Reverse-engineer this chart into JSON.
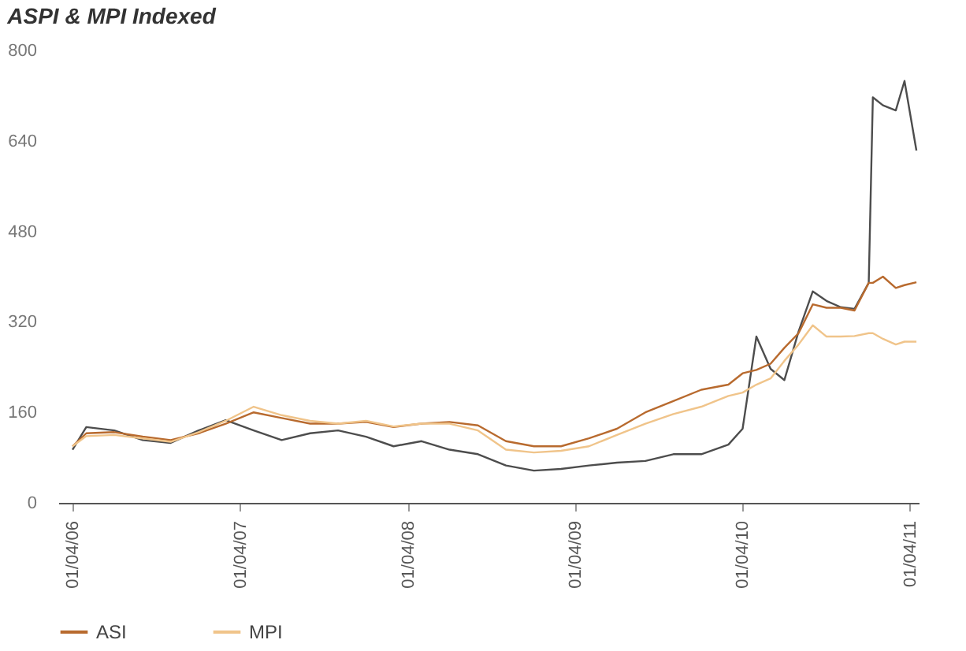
{
  "chart_data": {
    "type": "line",
    "title": "ASPI & MPI Indexed",
    "x": [
      "2006-04-01",
      "2006-05-01",
      "2006-07-01",
      "2006-09-01",
      "2006-11-01",
      "2007-01-01",
      "2007-03-01",
      "2007-05-01",
      "2007-07-01",
      "2007-09-01",
      "2007-11-01",
      "2008-01-01",
      "2008-03-01",
      "2008-05-01",
      "2008-07-01",
      "2008-09-01",
      "2008-11-01",
      "2009-01-01",
      "2009-03-01",
      "2009-05-01",
      "2009-07-01",
      "2009-09-01",
      "2009-11-01",
      "2010-01-01",
      "2010-03-01",
      "2010-04-01",
      "2010-05-01",
      "2010-06-01",
      "2010-07-01",
      "2010-08-01",
      "2010-09-01",
      "2010-10-01",
      "2010-11-01",
      "2010-12-01",
      "2011-01-01",
      "2011-01-10",
      "2011-02-01",
      "2011-03-01",
      "2011-03-20",
      "2011-04-15"
    ],
    "series": [
      {
        "color": "#4d4d4d",
        "values": [
          94,
          134,
          128,
          111,
          106,
          128,
          146,
          128,
          111,
          123,
          128,
          117,
          100,
          109,
          94,
          86,
          66,
          57,
          60,
          66,
          71,
          74,
          86,
          86,
          103,
          131,
          294,
          237,
          217,
          303,
          374,
          357,
          346,
          343,
          389,
          717,
          703,
          694,
          746,
          623
        ]
      },
      {
        "name": "ASI",
        "color": "#b86a2e",
        "values": [
          100,
          123,
          125,
          117,
          111,
          123,
          140,
          160,
          150,
          140,
          140,
          143,
          134,
          140,
          143,
          137,
          109,
          100,
          100,
          114,
          131,
          160,
          180,
          200,
          209,
          229,
          235,
          246,
          274,
          300,
          351,
          345,
          345,
          340,
          389,
          389,
          400,
          380,
          385,
          390
        ]
      },
      {
        "name": "MPI",
        "color": "#f0c48a",
        "values": [
          100,
          118,
          120,
          114,
          108,
          125,
          145,
          170,
          155,
          145,
          140,
          145,
          135,
          140,
          140,
          128,
          94,
          89,
          92,
          100,
          120,
          140,
          157,
          170,
          189,
          195,
          209,
          220,
          251,
          280,
          314,
          294,
          294,
          295,
          300,
          300,
          290,
          280,
          285,
          285
        ]
      }
    ],
    "xlim": [
      "2006-03-01",
      "2011-04-20"
    ],
    "xticks": [
      {
        "value": "2006-04-01",
        "label": "01/04/06"
      },
      {
        "value": "2007-04-01",
        "label": "01/04/07"
      },
      {
        "value": "2008-04-01",
        "label": "01/04/08"
      },
      {
        "value": "2009-04-01",
        "label": "01/04/09"
      },
      {
        "value": "2010-04-01",
        "label": "01/04/10"
      },
      {
        "value": "2011-04-01",
        "label": "01/04/11"
      }
    ],
    "ylim": [
      0,
      800
    ],
    "yticks": [
      0,
      160,
      320,
      480,
      640,
      800
    ],
    "grid": false,
    "legend": "bottom",
    "line_style": "solid",
    "marker": "none"
  }
}
